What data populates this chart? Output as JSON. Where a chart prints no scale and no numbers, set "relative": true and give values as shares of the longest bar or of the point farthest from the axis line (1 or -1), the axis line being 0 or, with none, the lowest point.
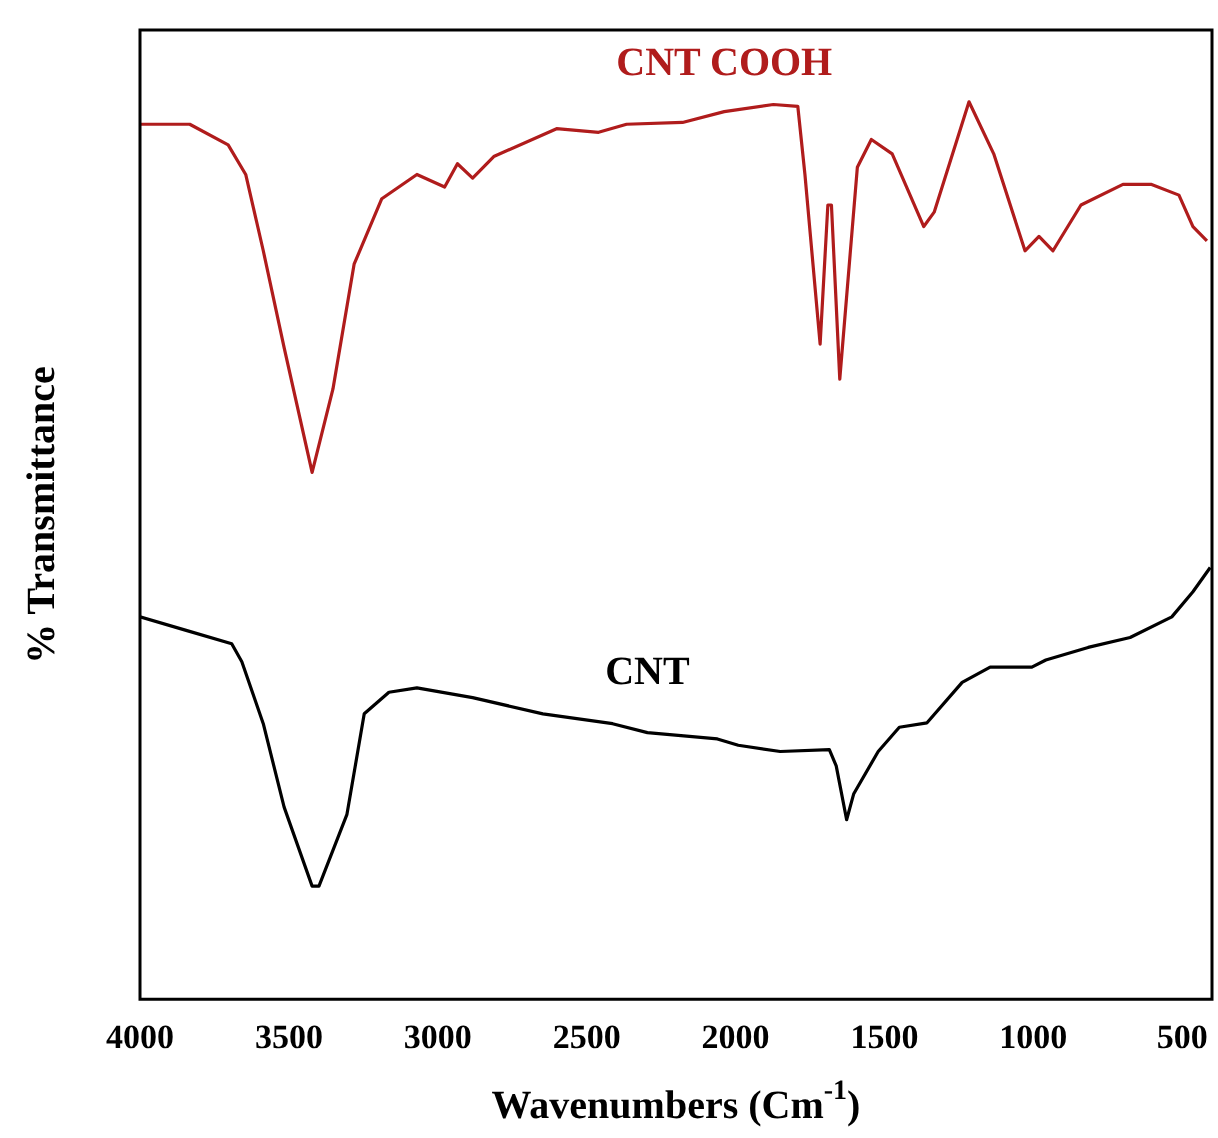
{
  "chart_data": {
    "type": "line",
    "relative": true,
    "xlabel": "Wavenumbers (Cm$^{-1}$)",
    "ylabel": "% Transmittance",
    "xlim": [
      4000,
      400
    ],
    "xticks": [
      4000,
      3500,
      3000,
      2500,
      2000,
      1500,
      1000,
      500
    ],
    "grid": false,
    "legend": false,
    "marker": "none",
    "line_style": "solid",
    "tick_labels": "x",
    "series": [
      {
        "name": "CNT COOH",
        "color": "#b01c1c",
        "x": [
          4000,
          3833,
          3704,
          3645,
          3586,
          3516,
          3422,
          3352,
          3281,
          3188,
          3070,
          2977,
          2934,
          2883,
          2812,
          2601,
          2460,
          2366,
          2178,
          2038,
          1873,
          1791,
          1767,
          1716,
          1690,
          1678,
          1650,
          1591,
          1544,
          1474,
          1368,
          1333,
          1216,
          1133,
          1028,
          981,
          934,
          840,
          699,
          605,
          511,
          464,
          417
        ],
        "values": [
          0.975,
          0.975,
          0.952,
          0.919,
          0.834,
          0.726,
          0.587,
          0.68,
          0.819,
          0.892,
          0.919,
          0.905,
          0.931,
          0.915,
          0.939,
          0.97,
          0.966,
          0.975,
          0.977,
          0.989,
          0.997,
          0.995,
          0.919,
          0.73,
          0.885,
          0.885,
          0.691,
          0.927,
          0.958,
          0.942,
          0.861,
          0.877,
          1,
          0.942,
          0.834,
          0.85,
          0.834,
          0.885,
          0.908,
          0.908,
          0.896,
          0.861,
          0.845
        ]
      },
      {
        "name": "CNT",
        "color": "#000000",
        "x": [
          4000,
          3845,
          3692,
          3658,
          3586,
          3516,
          3422,
          3399,
          3305,
          3247,
          3164,
          3070,
          2883,
          2647,
          2413,
          2296,
          2061,
          1991,
          1850,
          1685,
          1662,
          1627,
          1603,
          1521,
          1450,
          1357,
          1239,
          1145,
          1005,
          958,
          816,
          675,
          535,
          464,
          406
        ],
        "values": [
          0.426,
          0.411,
          0.396,
          0.376,
          0.307,
          0.214,
          0.126,
          0.126,
          0.206,
          0.318,
          0.342,
          0.347,
          0.336,
          0.318,
          0.307,
          0.297,
          0.29,
          0.283,
          0.276,
          0.278,
          0.26,
          0.2,
          0.229,
          0.276,
          0.303,
          0.308,
          0.353,
          0.37,
          0.37,
          0.378,
          0.392,
          0.403,
          0.426,
          0.454,
          0.481
        ]
      }
    ]
  }
}
